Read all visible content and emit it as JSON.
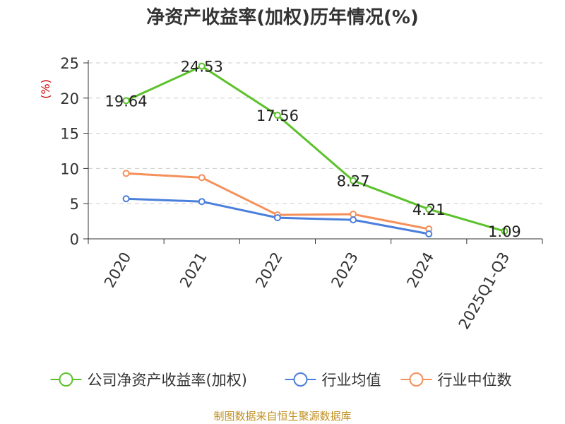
{
  "chart_data": {
    "type": "line",
    "title": "净资产收益率(加权)历年情况(%)",
    "ylabel": "(%)",
    "xlabel": "",
    "categories": [
      "2020",
      "2021",
      "2022",
      "2023",
      "2024",
      "2025Q1-Q3"
    ],
    "ylim": [
      0,
      25
    ],
    "yticks": [
      0,
      5,
      10,
      15,
      20,
      25
    ],
    "grid": "horizontal dashed",
    "legend_position": "bottom",
    "series": [
      {
        "name": "公司净资产收益率(加权)",
        "color": "#5cc22c",
        "values": [
          19.64,
          24.53,
          17.56,
          8.27,
          4.21,
          1.09
        ],
        "labels": [
          "19.64",
          "24.53",
          "17.56",
          "8.27",
          "4.21",
          "1.09"
        ]
      },
      {
        "name": "行业均值",
        "color": "#4a7fdc",
        "values": [
          5.7,
          5.3,
          3.0,
          2.7,
          0.7,
          null
        ]
      },
      {
        "name": "行业中位数",
        "color": "#f5905a",
        "values": [
          9.3,
          8.7,
          3.4,
          3.5,
          1.4,
          null
        ]
      }
    ]
  },
  "footer": {
    "source": "制图数据来自恒生聚源数据库"
  }
}
